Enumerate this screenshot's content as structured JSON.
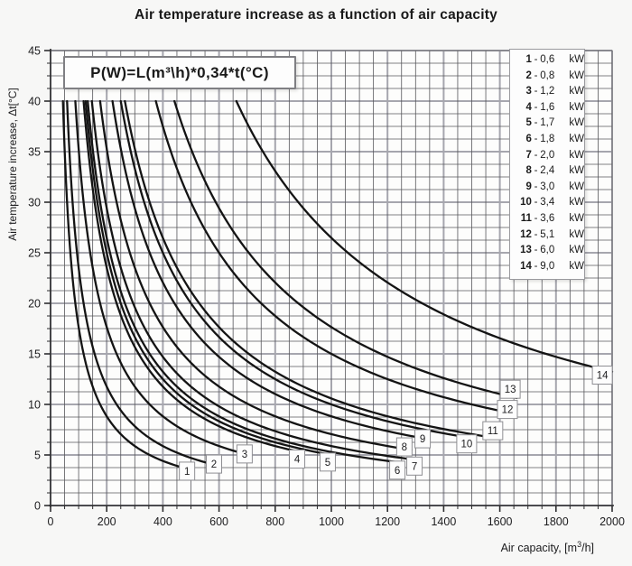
{
  "title": "Air temperature increase as a function of air capacity",
  "formula": "P(W)=L(m³\\h)*0,34*t(°C)",
  "axes": {
    "y_label": "Air temperature increase, Δt[°C]",
    "x_label_pre": "Air capacity, [m",
    "x_label_sup": "3",
    "x_label_post": "/h]"
  },
  "legend": {
    "separator": "-",
    "items": [
      {
        "num": "1",
        "value": "0,6",
        "unit": "kW"
      },
      {
        "num": "2",
        "value": "0,8",
        "unit": "kW"
      },
      {
        "num": "3",
        "value": "1,2",
        "unit": "kW"
      },
      {
        "num": "4",
        "value": "1,6",
        "unit": "kW"
      },
      {
        "num": "5",
        "value": "1,7",
        "unit": "kW"
      },
      {
        "num": "6",
        "value": "1,8",
        "unit": "kW"
      },
      {
        "num": "7",
        "value": "2,0",
        "unit": "kW"
      },
      {
        "num": "8",
        "value": "2,4",
        "unit": "kW"
      },
      {
        "num": "9",
        "value": "3,0",
        "unit": "kW"
      },
      {
        "num": "10",
        "value": "3,4",
        "unit": "kW"
      },
      {
        "num": "11",
        "value": "3,6",
        "unit": "kW"
      },
      {
        "num": "12",
        "value": "5,1",
        "unit": "kW"
      },
      {
        "num": "13",
        "value": "6,0",
        "unit": "kW"
      },
      {
        "num": "14",
        "value": "9,0",
        "unit": "kW"
      }
    ]
  },
  "chart_data": {
    "type": "line",
    "title": "Air temperature increase as a function of air capacity",
    "xlabel": "Air capacity, [m³/h]",
    "ylabel": "Air temperature increase, Δt[°C]",
    "xlim": [
      0,
      2000
    ],
    "ylim": [
      0,
      45
    ],
    "x_ticks": [
      0,
      200,
      400,
      600,
      800,
      1000,
      1200,
      1400,
      1600,
      1800,
      2000
    ],
    "y_ticks": [
      0,
      5,
      10,
      15,
      20,
      25,
      30,
      35,
      40,
      45
    ],
    "x_minor_step": 50,
    "y_minor_step": 1.25,
    "grid": "on",
    "legend_position": "top-right",
    "curve_rule": "dt_C = 1000*P_kW/(0.34*L_m3h); each curve drawn from dt=40 down to x_end",
    "curve_top_dt": 40,
    "series": [
      {
        "name": "1",
        "power_kw": 0.6,
        "x_end": 495,
        "label_x": 486,
        "label_y": 3.4
      },
      {
        "name": "2",
        "power_kw": 0.8,
        "x_end": 595,
        "label_x": 582,
        "label_y": 4.1
      },
      {
        "name": "3",
        "power_kw": 1.2,
        "x_end": 705,
        "label_x": 691,
        "label_y": 5.1
      },
      {
        "name": "4",
        "power_kw": 1.6,
        "x_end": 890,
        "label_x": 878,
        "label_y": 4.6
      },
      {
        "name": "5",
        "power_kw": 1.7,
        "x_end": 1000,
        "label_x": 987,
        "label_y": 4.3
      },
      {
        "name": "6",
        "power_kw": 1.8,
        "x_end": 1255,
        "label_x": 1235,
        "label_y": 3.5
      },
      {
        "name": "7",
        "power_kw": 2.0,
        "x_end": 1320,
        "label_x": 1296,
        "label_y": 3.9
      },
      {
        "name": "8",
        "power_kw": 2.4,
        "x_end": 1285,
        "label_x": 1260,
        "label_y": 5.8
      },
      {
        "name": "9",
        "power_kw": 3.0,
        "x_end": 1350,
        "label_x": 1325,
        "label_y": 6.6
      },
      {
        "name": "10",
        "power_kw": 3.4,
        "x_end": 1505,
        "label_x": 1482,
        "label_y": 6.1
      },
      {
        "name": "11",
        "power_kw": 3.6,
        "x_end": 1600,
        "label_x": 1575,
        "label_y": 7.4
      },
      {
        "name": "12",
        "power_kw": 5.1,
        "x_end": 1650,
        "label_x": 1627,
        "label_y": 9.5
      },
      {
        "name": "13",
        "power_kw": 6.0,
        "x_end": 1660,
        "label_x": 1637,
        "label_y": 11.5
      },
      {
        "name": "14",
        "power_kw": 9.0,
        "x_end": 2000,
        "label_x": 1965,
        "label_y": 12.9
      }
    ]
  },
  "colors": {
    "page_bg": "#f7f7f6",
    "plot_bg": "#fdfdfc",
    "minor_grid": "#57575b",
    "major_grid": "#a6a6ae",
    "axis": "#2e2e30",
    "curve": "#141414",
    "text": "#1c1c1e",
    "box_border": "#8f8f93"
  }
}
